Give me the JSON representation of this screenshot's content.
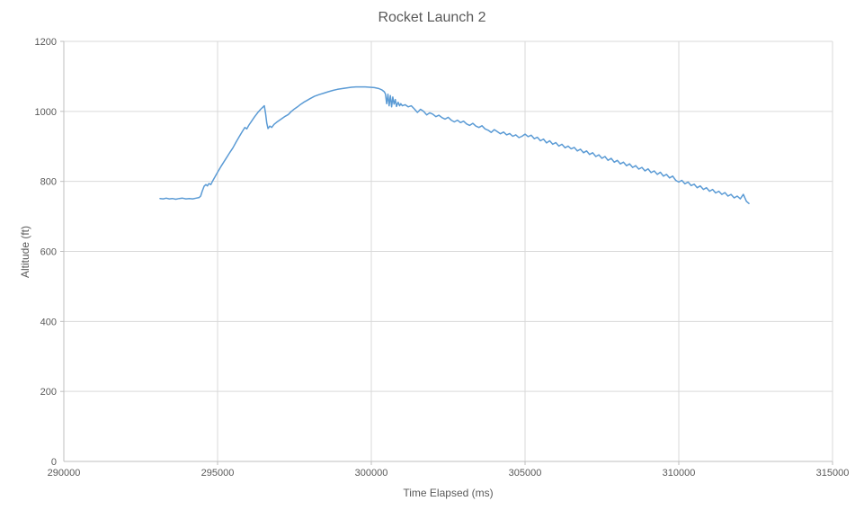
{
  "chart_data": {
    "type": "line",
    "title": "Rocket Launch 2",
    "xlabel": "Time Elapsed (ms)",
    "ylabel": "Altitude (ft)",
    "xlim": [
      290000,
      315000
    ],
    "ylim": [
      0,
      1200
    ],
    "x_ticks": [
      290000,
      295000,
      300000,
      305000,
      310000,
      315000
    ],
    "y_ticks": [
      0,
      200,
      400,
      600,
      800,
      1000,
      1200
    ],
    "grid": true,
    "legend": "none",
    "series": [
      {
        "name": "Altitude",
        "color": "#5b9bd5",
        "points": [
          [
            293130,
            751
          ],
          [
            293230,
            750
          ],
          [
            293330,
            752
          ],
          [
            293430,
            750
          ],
          [
            293530,
            751
          ],
          [
            293640,
            749
          ],
          [
            293750,
            751
          ],
          [
            293860,
            752
          ],
          [
            293970,
            750
          ],
          [
            294080,
            751
          ],
          [
            294190,
            750
          ],
          [
            294300,
            752
          ],
          [
            294400,
            754
          ],
          [
            294450,
            758
          ],
          [
            294500,
            772
          ],
          [
            294560,
            786
          ],
          [
            294620,
            791
          ],
          [
            294670,
            787
          ],
          [
            294720,
            794
          ],
          [
            294780,
            791
          ],
          [
            294840,
            801
          ],
          [
            294910,
            812
          ],
          [
            295000,
            826
          ],
          [
            295100,
            841
          ],
          [
            295200,
            855
          ],
          [
            295300,
            869
          ],
          [
            295400,
            883
          ],
          [
            295500,
            896
          ],
          [
            295600,
            912
          ],
          [
            295700,
            927
          ],
          [
            295800,
            942
          ],
          [
            295890,
            954
          ],
          [
            295950,
            950
          ],
          [
            296020,
            961
          ],
          [
            296100,
            971
          ],
          [
            296200,
            984
          ],
          [
            296300,
            996
          ],
          [
            296400,
            1006
          ],
          [
            296520,
            1016
          ],
          [
            296560,
            994
          ],
          [
            296600,
            967
          ],
          [
            296640,
            951
          ],
          [
            296700,
            958
          ],
          [
            296760,
            954
          ],
          [
            296840,
            963
          ],
          [
            296920,
            969
          ],
          [
            297000,
            974
          ],
          [
            297100,
            980
          ],
          [
            297200,
            986
          ],
          [
            297300,
            991
          ],
          [
            297400,
            1000
          ],
          [
            297500,
            1007
          ],
          [
            297600,
            1013
          ],
          [
            297700,
            1020
          ],
          [
            297800,
            1026
          ],
          [
            297900,
            1031
          ],
          [
            298000,
            1036
          ],
          [
            298150,
            1043
          ],
          [
            298300,
            1048
          ],
          [
            298450,
            1052
          ],
          [
            298600,
            1056
          ],
          [
            298750,
            1060
          ],
          [
            298900,
            1063
          ],
          [
            299050,
            1065
          ],
          [
            299200,
            1067
          ],
          [
            299350,
            1069
          ],
          [
            299500,
            1070
          ],
          [
            299650,
            1070
          ],
          [
            299800,
            1070
          ],
          [
            299950,
            1069
          ],
          [
            300100,
            1068
          ],
          [
            300250,
            1065
          ],
          [
            300350,
            1061
          ],
          [
            300420,
            1056
          ],
          [
            300460,
            1050
          ],
          [
            300500,
            1022
          ],
          [
            300540,
            1049
          ],
          [
            300580,
            1016
          ],
          [
            300620,
            1045
          ],
          [
            300660,
            1013
          ],
          [
            300700,
            1041
          ],
          [
            300740,
            1021
          ],
          [
            300780,
            1034
          ],
          [
            300820,
            1014
          ],
          [
            300870,
            1026
          ],
          [
            300920,
            1016
          ],
          [
            300960,
            1022
          ],
          [
            301010,
            1016
          ],
          [
            301100,
            1019
          ],
          [
            301200,
            1013
          ],
          [
            301300,
            1016
          ],
          [
            301400,
            1007
          ],
          [
            301500,
            997
          ],
          [
            301600,
            1006
          ],
          [
            301700,
            1000
          ],
          [
            301800,
            990
          ],
          [
            301900,
            996
          ],
          [
            302000,
            992
          ],
          [
            302100,
            985
          ],
          [
            302200,
            989
          ],
          [
            302300,
            982
          ],
          [
            302400,
            978
          ],
          [
            302500,
            983
          ],
          [
            302600,
            975
          ],
          [
            302700,
            970
          ],
          [
            302800,
            975
          ],
          [
            302900,
            968
          ],
          [
            303000,
            972
          ],
          [
            303100,
            964
          ],
          [
            303200,
            960
          ],
          [
            303300,
            966
          ],
          [
            303400,
            958
          ],
          [
            303500,
            954
          ],
          [
            303600,
            959
          ],
          [
            303700,
            950
          ],
          [
            303800,
            946
          ],
          [
            303900,
            940
          ],
          [
            304000,
            948
          ],
          [
            304100,
            942
          ],
          [
            304200,
            936
          ],
          [
            304300,
            941
          ],
          [
            304400,
            933
          ],
          [
            304500,
            937
          ],
          [
            304600,
            929
          ],
          [
            304700,
            933
          ],
          [
            304800,
            925
          ],
          [
            304900,
            929
          ],
          [
            305000,
            935
          ],
          [
            305100,
            928
          ],
          [
            305200,
            932
          ],
          [
            305300,
            922
          ],
          [
            305400,
            926
          ],
          [
            305500,
            916
          ],
          [
            305600,
            921
          ],
          [
            305700,
            910
          ],
          [
            305800,
            916
          ],
          [
            305900,
            906
          ],
          [
            306000,
            911
          ],
          [
            306100,
            901
          ],
          [
            306200,
            906
          ],
          [
            306300,
            896
          ],
          [
            306400,
            901
          ],
          [
            306500,
            893
          ],
          [
            306600,
            897
          ],
          [
            306700,
            887
          ],
          [
            306800,
            892
          ],
          [
            306900,
            882
          ],
          [
            307000,
            887
          ],
          [
            307100,
            877
          ],
          [
            307200,
            882
          ],
          [
            307300,
            871
          ],
          [
            307400,
            876
          ],
          [
            307500,
            866
          ],
          [
            307600,
            871
          ],
          [
            307700,
            860
          ],
          [
            307800,
            866
          ],
          [
            307900,
            855
          ],
          [
            308000,
            860
          ],
          [
            308100,
            850
          ],
          [
            308200,
            855
          ],
          [
            308300,
            845
          ],
          [
            308400,
            850
          ],
          [
            308500,
            840
          ],
          [
            308600,
            845
          ],
          [
            308700,
            835
          ],
          [
            308800,
            840
          ],
          [
            308900,
            830
          ],
          [
            309000,
            836
          ],
          [
            309100,
            825
          ],
          [
            309200,
            830
          ],
          [
            309300,
            820
          ],
          [
            309400,
            826
          ],
          [
            309500,
            815
          ],
          [
            309600,
            820
          ],
          [
            309700,
            810
          ],
          [
            309800,
            815
          ],
          [
            309900,
            803
          ],
          [
            310000,
            798
          ],
          [
            310100,
            803
          ],
          [
            310200,
            793
          ],
          [
            310300,
            798
          ],
          [
            310400,
            788
          ],
          [
            310500,
            792
          ],
          [
            310600,
            782
          ],
          [
            310700,
            787
          ],
          [
            310800,
            777
          ],
          [
            310900,
            782
          ],
          [
            311000,
            772
          ],
          [
            311100,
            777
          ],
          [
            311200,
            767
          ],
          [
            311300,
            772
          ],
          [
            311400,
            763
          ],
          [
            311500,
            768
          ],
          [
            311600,
            758
          ],
          [
            311700,
            763
          ],
          [
            311800,
            753
          ],
          [
            311900,
            758
          ],
          [
            312000,
            750
          ],
          [
            312100,
            763
          ],
          [
            312200,
            743
          ],
          [
            312280,
            737
          ]
        ]
      }
    ]
  },
  "style": {
    "line_color": "#5b9bd5",
    "grid_color": "#d9d9d9",
    "axis_color": "#bfbfbf",
    "text_color": "#595959",
    "background": "#ffffff",
    "tick_font_size": 11
  }
}
